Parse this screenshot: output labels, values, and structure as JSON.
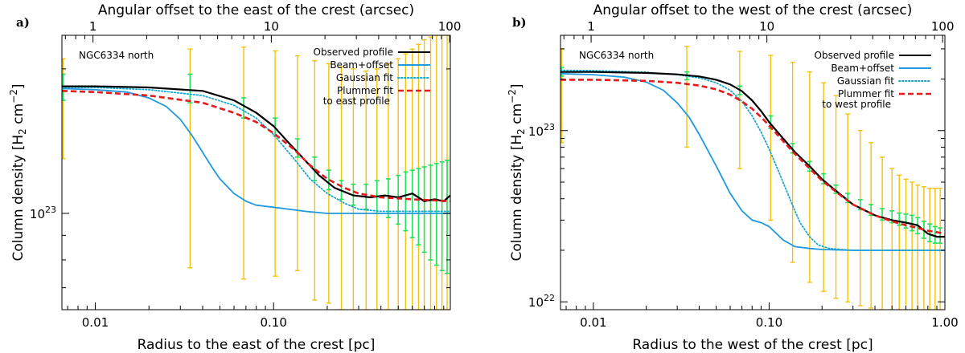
{
  "chart_data": [
    {
      "type": "line",
      "panel": "a)",
      "annotation": "NGC6334 north",
      "xlabel": "Radius to the east of the crest [pc]",
      "top_xlabel": "Angular offset to the east of the crest (arcsec)",
      "ylabel_main": "Column density [H",
      "ylabel_sub": "2",
      "ylabel_unit": " cm",
      "ylabel_sup": "−2",
      "ylabel_close": "]",
      "xscale": "log",
      "yscale": "log",
      "xlim": [
        0.0065,
        0.98
      ],
      "ylim": [
        6.3e+22,
        2.35e+23
      ],
      "x_ticks": [
        0.01,
        0.1
      ],
      "x_tick_labels": [
        "0.01",
        "0.10"
      ],
      "top_ticks": [
        1,
        10,
        100
      ],
      "top_tick_labels": [
        "1",
        "10",
        "100"
      ],
      "arcsec_per_pc": 103,
      "y_ticks": [
        1e+23
      ],
      "y_tick_labels": [
        {
          "mantissa": "10",
          "exp": "23"
        }
      ],
      "legend": {
        "placement": "top-right",
        "entries": [
          {
            "label": "Observed profile",
            "color": "#000000",
            "dash": "solid"
          },
          {
            "label": "Beam+offset",
            "color": "#1f9ae0",
            "dash": "solid"
          },
          {
            "label": "Gaussian fit",
            "color": "#1aa7c9",
            "dash": "dotted"
          },
          {
            "label": "Plummer fit",
            "label2": "to east profile",
            "color": "#e41a1c",
            "dash": "dashed"
          }
        ]
      },
      "colors": {
        "observed": "#000000",
        "beam": "#1f9ae0",
        "gaussian": "#1aa7c9",
        "plummer": "#e41a1c",
        "err_yellow": "#f4c20d",
        "err_green": "#22e15a"
      },
      "series": [
        {
          "name": "Observed profile",
          "key": "observed",
          "x": [
            0.0065,
            0.01,
            0.02,
            0.04,
            0.06,
            0.08,
            0.1,
            0.12,
            0.15,
            0.18,
            0.22,
            0.28,
            0.35,
            0.42,
            0.5,
            0.6,
            0.7,
            0.8,
            0.9,
            0.98
          ],
          "y": [
            1.84e+23,
            1.84e+23,
            1.83e+23,
            1.8e+23,
            1.72e+23,
            1.62e+23,
            1.52e+23,
            1.41e+23,
            1.29e+23,
            1.2e+23,
            1.13e+23,
            1.09e+23,
            1.08e+23,
            1.09e+23,
            1.08e+23,
            1.1e+23,
            1.06e+23,
            1.07e+23,
            1.06e+23,
            1.09e+23
          ]
        },
        {
          "name": "Beam+offset",
          "key": "beam",
          "x": [
            0.0065,
            0.01,
            0.015,
            0.02,
            0.025,
            0.03,
            0.035,
            0.04,
            0.045,
            0.05,
            0.06,
            0.07,
            0.08,
            0.1,
            0.15,
            0.2,
            0.3,
            0.5,
            0.98
          ],
          "y": [
            1.82e+23,
            1.81e+23,
            1.79e+23,
            1.74e+23,
            1.67e+23,
            1.57e+23,
            1.45e+23,
            1.34e+23,
            1.25e+23,
            1.18e+23,
            1.1e+23,
            1.06e+23,
            1.04e+23,
            1.03e+23,
            1.01e+23,
            1e+23,
            1e+23,
            1e+23,
            1e+23
          ]
        },
        {
          "name": "Gaussian fit",
          "key": "gaussian",
          "x": [
            0.0065,
            0.01,
            0.02,
            0.04,
            0.06,
            0.08,
            0.1,
            0.13,
            0.16,
            0.2,
            0.25,
            0.3,
            0.4,
            0.6,
            0.98
          ],
          "y": [
            1.83e+23,
            1.83e+23,
            1.81e+23,
            1.76e+23,
            1.68e+23,
            1.58e+23,
            1.46e+23,
            1.3e+23,
            1.18e+23,
            1.1e+23,
            1.05e+23,
            1.02e+23,
            1.01e+23,
            1.01e+23,
            1.01e+23
          ]
        },
        {
          "name": "Plummer fit to east profile",
          "key": "plummer",
          "x": [
            0.0065,
            0.01,
            0.02,
            0.04,
            0.06,
            0.08,
            0.1,
            0.13,
            0.16,
            0.2,
            0.25,
            0.3,
            0.4,
            0.6,
            0.98
          ],
          "y": [
            1.8e+23,
            1.79e+23,
            1.76e+23,
            1.7e+23,
            1.62e+23,
            1.55e+23,
            1.47e+23,
            1.36e+23,
            1.26e+23,
            1.18e+23,
            1.13e+23,
            1.1e+23,
            1.08e+23,
            1.07e+23,
            1.06e+23
          ]
        }
      ],
      "errorbars_yellow": [
        {
          "x": 0.0066,
          "lo": 1.3e+23,
          "hi": 2.1e+23
        },
        {
          "x": 0.034,
          "lo": 7.7e+22,
          "hi": 2.2e+23
        },
        {
          "x": 0.068,
          "lo": 7.3e+22,
          "hi": 2.22e+23
        },
        {
          "x": 0.102,
          "lo": 7.4e+22,
          "hi": 2.18e+23
        },
        {
          "x": 0.136,
          "lo": 7.6e+22,
          "hi": 2.13e+23
        },
        {
          "x": 0.17,
          "lo": 6.6e+22,
          "hi": 2.08e+23
        },
        {
          "x": 0.204,
          "lo": 6.5e+22,
          "hi": 2.05e+23
        },
        {
          "x": 0.24,
          "lo": 6.3e+22,
          "hi": 2.02e+23
        },
        {
          "x": 0.28,
          "lo": 6.3e+22,
          "hi": 2e+23
        },
        {
          "x": 0.33,
          "lo": 6.3e+22,
          "hi": 1.98e+23
        },
        {
          "x": 0.38,
          "lo": 6.3e+22,
          "hi": 2e+23
        },
        {
          "x": 0.44,
          "lo": 6.3e+22,
          "hi": 2.05e+23
        },
        {
          "x": 0.5,
          "lo": 6.3e+22,
          "hi": 2.1e+23
        },
        {
          "x": 0.55,
          "lo": 6.3e+22,
          "hi": 2.15e+23
        },
        {
          "x": 0.6,
          "lo": 6.3e+22,
          "hi": 2.2e+23
        },
        {
          "x": 0.65,
          "lo": 6.3e+22,
          "hi": 2.25e+23
        },
        {
          "x": 0.7,
          "lo": 6.3e+22,
          "hi": 2.3e+23
        },
        {
          "x": 0.76,
          "lo": 6.3e+22,
          "hi": 2.33e+23
        },
        {
          "x": 0.82,
          "lo": 6.3e+22,
          "hi": 2.35e+23
        },
        {
          "x": 0.88,
          "lo": 6.3e+22,
          "hi": 2.35e+23
        },
        {
          "x": 0.94,
          "lo": 6.3e+22,
          "hi": 2.35e+23
        }
      ],
      "errorbars_green": [
        {
          "x": 0.0066,
          "lo": 1.72e+23,
          "hi": 1.95e+23
        },
        {
          "x": 0.034,
          "lo": 1.7e+23,
          "hi": 1.95e+23
        },
        {
          "x": 0.068,
          "lo": 1.58e+23,
          "hi": 1.74e+23
        },
        {
          "x": 0.102,
          "lo": 1.45e+23,
          "hi": 1.58e+23
        },
        {
          "x": 0.136,
          "lo": 1.31e+23,
          "hi": 1.43e+23
        },
        {
          "x": 0.17,
          "lo": 1.17e+23,
          "hi": 1.31e+23
        },
        {
          "x": 0.204,
          "lo": 1.12e+23,
          "hi": 1.23e+23
        },
        {
          "x": 0.24,
          "lo": 1.07e+23,
          "hi": 1.17e+23
        },
        {
          "x": 0.28,
          "lo": 1.04e+23,
          "hi": 1.15e+23
        },
        {
          "x": 0.33,
          "lo": 1.02e+23,
          "hi": 1.15e+23
        },
        {
          "x": 0.38,
          "lo": 1e+23,
          "hi": 1.17e+23
        },
        {
          "x": 0.44,
          "lo": 9.8e+22,
          "hi": 1.18e+23
        },
        {
          "x": 0.5,
          "lo": 9.5e+22,
          "hi": 1.2e+23
        },
        {
          "x": 0.55,
          "lo": 9.2e+22,
          "hi": 1.22e+23
        },
        {
          "x": 0.6,
          "lo": 8.9e+22,
          "hi": 1.23e+23
        },
        {
          "x": 0.65,
          "lo": 8.6e+22,
          "hi": 1.24e+23
        },
        {
          "x": 0.7,
          "lo": 8.3e+22,
          "hi": 1.25e+23
        },
        {
          "x": 0.76,
          "lo": 8e+22,
          "hi": 1.26e+23
        },
        {
          "x": 0.82,
          "lo": 7.8e+22,
          "hi": 1.27e+23
        },
        {
          "x": 0.88,
          "lo": 7.6e+22,
          "hi": 1.28e+23
        },
        {
          "x": 0.94,
          "lo": 7.5e+22,
          "hi": 1.29e+23
        }
      ]
    },
    {
      "type": "line",
      "panel": "b)",
      "annotation": "NGC6334 north",
      "xlabel": "Radius to the west of the crest [pc]",
      "top_xlabel": "Angular offset to the west of the crest (arcsec)",
      "ylabel_main": "Column density [H",
      "ylabel_sub": "2",
      "ylabel_unit": " cm",
      "ylabel_sup": "−2",
      "ylabel_close": "]",
      "xscale": "log",
      "yscale": "log",
      "xlim": [
        0.0065,
        1.0
      ],
      "ylim": [
        9e+21,
        3.6e+23
      ],
      "x_ticks": [
        0.01,
        0.1,
        1.0
      ],
      "x_tick_labels": [
        "0.01",
        "0.10",
        "1.00"
      ],
      "top_ticks": [
        1,
        10,
        100
      ],
      "top_tick_labels": [
        "1",
        "10",
        "100"
      ],
      "arcsec_per_pc": 103,
      "y_ticks": [
        1e+22,
        1e+23
      ],
      "y_tick_labels": [
        {
          "mantissa": "10",
          "exp": "22"
        },
        {
          "mantissa": "10",
          "exp": "23"
        }
      ],
      "legend": {
        "placement": "top-right",
        "entries": [
          {
            "label": "Observed profile",
            "color": "#000000",
            "dash": "solid"
          },
          {
            "label": "Beam+offset",
            "color": "#1f9ae0",
            "dash": "solid"
          },
          {
            "label": "Gaussian fit",
            "color": "#1aa7c9",
            "dash": "dotted"
          },
          {
            "label": "Plummer fit",
            "label2": "to west profile",
            "color": "#e41a1c",
            "dash": "dashed"
          }
        ]
      },
      "colors": {
        "observed": "#000000",
        "beam": "#1f9ae0",
        "gaussian": "#1aa7c9",
        "plummer": "#e41a1c",
        "err_yellow": "#f4c20d",
        "err_green": "#22e15a"
      },
      "series": [
        {
          "name": "Observed profile",
          "key": "observed",
          "x": [
            0.0065,
            0.01,
            0.02,
            0.03,
            0.04,
            0.05,
            0.06,
            0.07,
            0.08,
            0.09,
            0.1,
            0.12,
            0.14,
            0.17,
            0.2,
            0.25,
            0.3,
            0.4,
            0.5,
            0.6,
            0.7,
            0.8,
            0.9,
            1.0
          ],
          "y": [
            2.2e+23,
            2.2e+23,
            2.17e+23,
            2.13e+23,
            2.07e+23,
            1.98e+23,
            1.86e+23,
            1.7e+23,
            1.5e+23,
            1.3e+23,
            1.12e+23,
            9e+22,
            7.5e+22,
            6.2e+22,
            5.2e+22,
            4.3e+22,
            3.7e+22,
            3.2e+22,
            3e+22,
            2.9e+22,
            2.8e+22,
            2.5e+22,
            2.4e+22,
            2.4e+22
          ]
        },
        {
          "name": "Beam+offset",
          "key": "beam",
          "x": [
            0.0065,
            0.01,
            0.015,
            0.02,
            0.025,
            0.03,
            0.035,
            0.04,
            0.05,
            0.06,
            0.07,
            0.08,
            0.09,
            0.1,
            0.12,
            0.14,
            0.17,
            0.2,
            0.3,
            0.5,
            1.0
          ],
          "y": [
            2.15e+23,
            2.12e+23,
            2.05e+23,
            1.92e+23,
            1.72e+23,
            1.45e+23,
            1.2e+23,
            9.5e+22,
            6.2e+22,
            4.3e+22,
            3.4e+22,
            3e+22,
            2.9e+22,
            2.75e+22,
            2.3e+22,
            2.1e+22,
            2.05e+22,
            2.02e+22,
            2e+22,
            2e+22,
            2e+22
          ]
        },
        {
          "name": "Gaussian fit",
          "key": "gaussian",
          "x": [
            0.0065,
            0.01,
            0.02,
            0.03,
            0.04,
            0.05,
            0.06,
            0.07,
            0.08,
            0.09,
            0.1,
            0.11,
            0.12,
            0.13,
            0.14,
            0.15,
            0.17,
            0.19,
            0.22,
            0.3,
            0.5,
            1.0
          ],
          "y": [
            2.25e+23,
            2.24e+23,
            2.19e+23,
            2.12e+23,
            2.03e+23,
            1.9e+23,
            1.72e+23,
            1.48e+23,
            1.22e+23,
            9.8e+22,
            7.8e+22,
            6.2e+22,
            5e+22,
            4.1e+22,
            3.4e+22,
            2.9e+22,
            2.4e+22,
            2.15e+22,
            2.05e+22,
            2e+22,
            2e+22,
            2e+22
          ]
        },
        {
          "name": "Plummer fit to west profile",
          "key": "plummer",
          "x": [
            0.0065,
            0.01,
            0.02,
            0.03,
            0.04,
            0.05,
            0.06,
            0.07,
            0.08,
            0.09,
            0.1,
            0.12,
            0.14,
            0.17,
            0.2,
            0.25,
            0.3,
            0.4,
            0.5,
            0.6,
            0.7,
            0.8,
            0.9,
            1.0
          ],
          "y": [
            1.98e+23,
            1.98e+23,
            1.95e+23,
            1.9e+23,
            1.83e+23,
            1.74e+23,
            1.62e+23,
            1.48e+23,
            1.34e+23,
            1.2e+23,
            1.07e+23,
            8.7e+22,
            7.3e+22,
            6e+22,
            5.1e+22,
            4.25e+22,
            3.7e+22,
            3.2e+22,
            2.95e+22,
            2.8e+22,
            2.7e+22,
            2.6e+22,
            2.55e+22,
            2.5e+22
          ]
        }
      ],
      "errorbars_yellow": [
        {
          "x": 0.0066,
          "lo": 8.5e+22,
          "hi": 3e+23
        },
        {
          "x": 0.034,
          "lo": 8e+22,
          "hi": 3.1e+23
        },
        {
          "x": 0.068,
          "lo": 6e+22,
          "hi": 2.9e+23
        },
        {
          "x": 0.102,
          "lo": 3e+22,
          "hi": 2.75e+23
        },
        {
          "x": 0.136,
          "lo": 1.7e+22,
          "hi": 2.5e+23
        },
        {
          "x": 0.17,
          "lo": 1.3e+22,
          "hi": 2.2e+23
        },
        {
          "x": 0.204,
          "lo": 1.15e+22,
          "hi": 1.9e+23
        },
        {
          "x": 0.24,
          "lo": 1.05e+22,
          "hi": 1.6e+23
        },
        {
          "x": 0.28,
          "lo": 1e+22,
          "hi": 1.25e+23
        },
        {
          "x": 0.33,
          "lo": 9.5e+21,
          "hi": 1e+23
        },
        {
          "x": 0.38,
          "lo": 9.2e+21,
          "hi": 8.5e+22
        },
        {
          "x": 0.44,
          "lo": 9e+21,
          "hi": 7e+22
        },
        {
          "x": 0.5,
          "lo": 9e+21,
          "hi": 6e+22
        },
        {
          "x": 0.55,
          "lo": 9e+21,
          "hi": 5.5e+22
        },
        {
          "x": 0.6,
          "lo": 9e+21,
          "hi": 5.2e+22
        },
        {
          "x": 0.65,
          "lo": 9e+21,
          "hi": 5e+22
        },
        {
          "x": 0.7,
          "lo": 9e+21,
          "hi": 4.8e+22
        },
        {
          "x": 0.76,
          "lo": 9e+21,
          "hi": 4.7e+22
        },
        {
          "x": 0.82,
          "lo": 9e+21,
          "hi": 4.6e+22
        },
        {
          "x": 0.88,
          "lo": 9e+21,
          "hi": 4.6e+22
        },
        {
          "x": 0.94,
          "lo": 9e+21,
          "hi": 4.6e+22
        }
      ],
      "errorbars_green": [
        {
          "x": 0.0066,
          "lo": 2.08e+23,
          "hi": 2.34e+23
        },
        {
          "x": 0.034,
          "lo": 1.98e+23,
          "hi": 2.2e+23
        },
        {
          "x": 0.068,
          "lo": 1.62e+23,
          "hi": 1.82e+23
        },
        {
          "x": 0.102,
          "lo": 1.03e+23,
          "hi": 1.22e+23
        },
        {
          "x": 0.136,
          "lo": 7.4e+22,
          "hi": 8.4e+22
        },
        {
          "x": 0.17,
          "lo": 5.8e+22,
          "hi": 6.6e+22
        },
        {
          "x": 0.204,
          "lo": 4.9e+22,
          "hi": 5.6e+22
        },
        {
          "x": 0.24,
          "lo": 4.3e+22,
          "hi": 4.8e+22
        },
        {
          "x": 0.28,
          "lo": 3.8e+22,
          "hi": 4.3e+22
        },
        {
          "x": 0.33,
          "lo": 3.45e+22,
          "hi": 3.95e+22
        },
        {
          "x": 0.38,
          "lo": 3.2e+22,
          "hi": 3.7e+22
        },
        {
          "x": 0.44,
          "lo": 3e+22,
          "hi": 3.5e+22
        },
        {
          "x": 0.5,
          "lo": 2.9e+22,
          "hi": 3.4e+22
        },
        {
          "x": 0.55,
          "lo": 2.8e+22,
          "hi": 3.3e+22
        },
        {
          "x": 0.6,
          "lo": 2.7e+22,
          "hi": 3.25e+22
        },
        {
          "x": 0.65,
          "lo": 2.6e+22,
          "hi": 3.2e+22
        },
        {
          "x": 0.7,
          "lo": 2.5e+22,
          "hi": 3.1e+22
        },
        {
          "x": 0.76,
          "lo": 2.35e+22,
          "hi": 2.95e+22
        },
        {
          "x": 0.82,
          "lo": 2.25e+22,
          "hi": 2.85e+22
        },
        {
          "x": 0.88,
          "lo": 2.2e+22,
          "hi": 2.75e+22
        },
        {
          "x": 0.94,
          "lo": 2.2e+22,
          "hi": 2.7e+22
        }
      ]
    }
  ]
}
